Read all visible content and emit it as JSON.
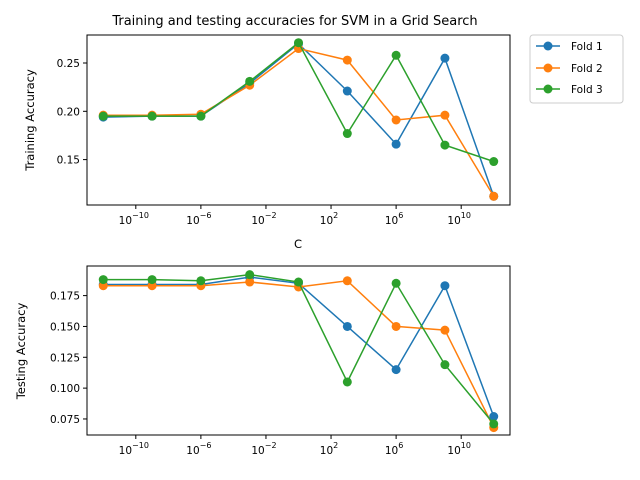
{
  "chart_data": [
    {
      "type": "line",
      "title": "Training and testing accuracies for SVM in a Grid Search",
      "xlabel": "C",
      "ylabel": "Training Accuracy",
      "xscale": "log",
      "xlim": [
        1e-13,
        10000000000000.0
      ],
      "ylim": [
        0.103,
        0.279
      ],
      "x": [
        1e-12,
        1e-09,
        1e-06,
        0.001,
        1,
        1000,
        1000000,
        1000000000,
        1000000000000
      ],
      "x_tick_labels": [
        "10",
        "10",
        "10",
        "10",
        "10",
        "10",
        "10",
        "10"
      ],
      "x_tick_exponents": [
        "−10",
        "−6",
        "−2",
        "2",
        "6",
        "10",
        "",
        ""
      ],
      "x_ticks": [
        {
          "value": 1e-10,
          "base": "10",
          "exp": "−10"
        },
        {
          "value": 1e-06,
          "base": "10",
          "exp": "−6"
        },
        {
          "value": 0.01,
          "base": "10",
          "exp": "−2"
        },
        {
          "value": 100,
          "base": "10",
          "exp": "2"
        },
        {
          "value": 1000000,
          "base": "10",
          "exp": "6"
        },
        {
          "value": 10000000000,
          "base": "10",
          "exp": "10"
        }
      ],
      "y_ticks": [
        "0.15",
        "0.20",
        "0.25"
      ],
      "grid": false,
      "legend": "outside-top-right",
      "series": [
        {
          "name": "Fold 1",
          "color": "#1f77b4",
          "values": [
            0.194,
            0.195,
            0.195,
            0.229,
            0.27,
            0.221,
            0.166,
            0.255,
            0.112
          ]
        },
        {
          "name": "Fold 2",
          "color": "#ff7f0e",
          "values": [
            0.196,
            0.196,
            0.197,
            0.227,
            0.265,
            0.253,
            0.191,
            0.196,
            0.112
          ]
        },
        {
          "name": "Fold 3",
          "color": "#2ca02c",
          "values": [
            0.195,
            0.195,
            0.195,
            0.231,
            0.271,
            0.177,
            0.258,
            0.165,
            0.148
          ]
        }
      ]
    },
    {
      "type": "line",
      "title": "",
      "xlabel": "",
      "ylabel": "Testing Accuracy",
      "xscale": "log",
      "xlim": [
        1e-13,
        10000000000000.0
      ],
      "ylim": [
        0.062,
        0.199
      ],
      "x": [
        1e-12,
        1e-09,
        1e-06,
        0.001,
        1,
        1000,
        1000000,
        1000000000,
        1000000000000
      ],
      "x_ticks": [
        {
          "value": 1e-10,
          "base": "10",
          "exp": "−10"
        },
        {
          "value": 1e-06,
          "base": "10",
          "exp": "−6"
        },
        {
          "value": 0.01,
          "base": "10",
          "exp": "−2"
        },
        {
          "value": 100,
          "base": "10",
          "exp": "2"
        },
        {
          "value": 1000000,
          "base": "10",
          "exp": "6"
        },
        {
          "value": 10000000000,
          "base": "10",
          "exp": "10"
        }
      ],
      "y_ticks": [
        "0.075",
        "0.100",
        "0.125",
        "0.150",
        "0.175"
      ],
      "grid": false,
      "series": [
        {
          "name": "Fold 1",
          "color": "#1f77b4",
          "values": [
            0.184,
            0.184,
            0.184,
            0.19,
            0.185,
            0.15,
            0.115,
            0.183,
            0.077
          ]
        },
        {
          "name": "Fold 2",
          "color": "#ff7f0e",
          "values": [
            0.183,
            0.183,
            0.183,
            0.186,
            0.182,
            0.187,
            0.15,
            0.147,
            0.068
          ]
        },
        {
          "name": "Fold 3",
          "color": "#2ca02c",
          "values": [
            0.188,
            0.188,
            0.187,
            0.192,
            0.186,
            0.105,
            0.185,
            0.119,
            0.071
          ]
        }
      ]
    }
  ]
}
